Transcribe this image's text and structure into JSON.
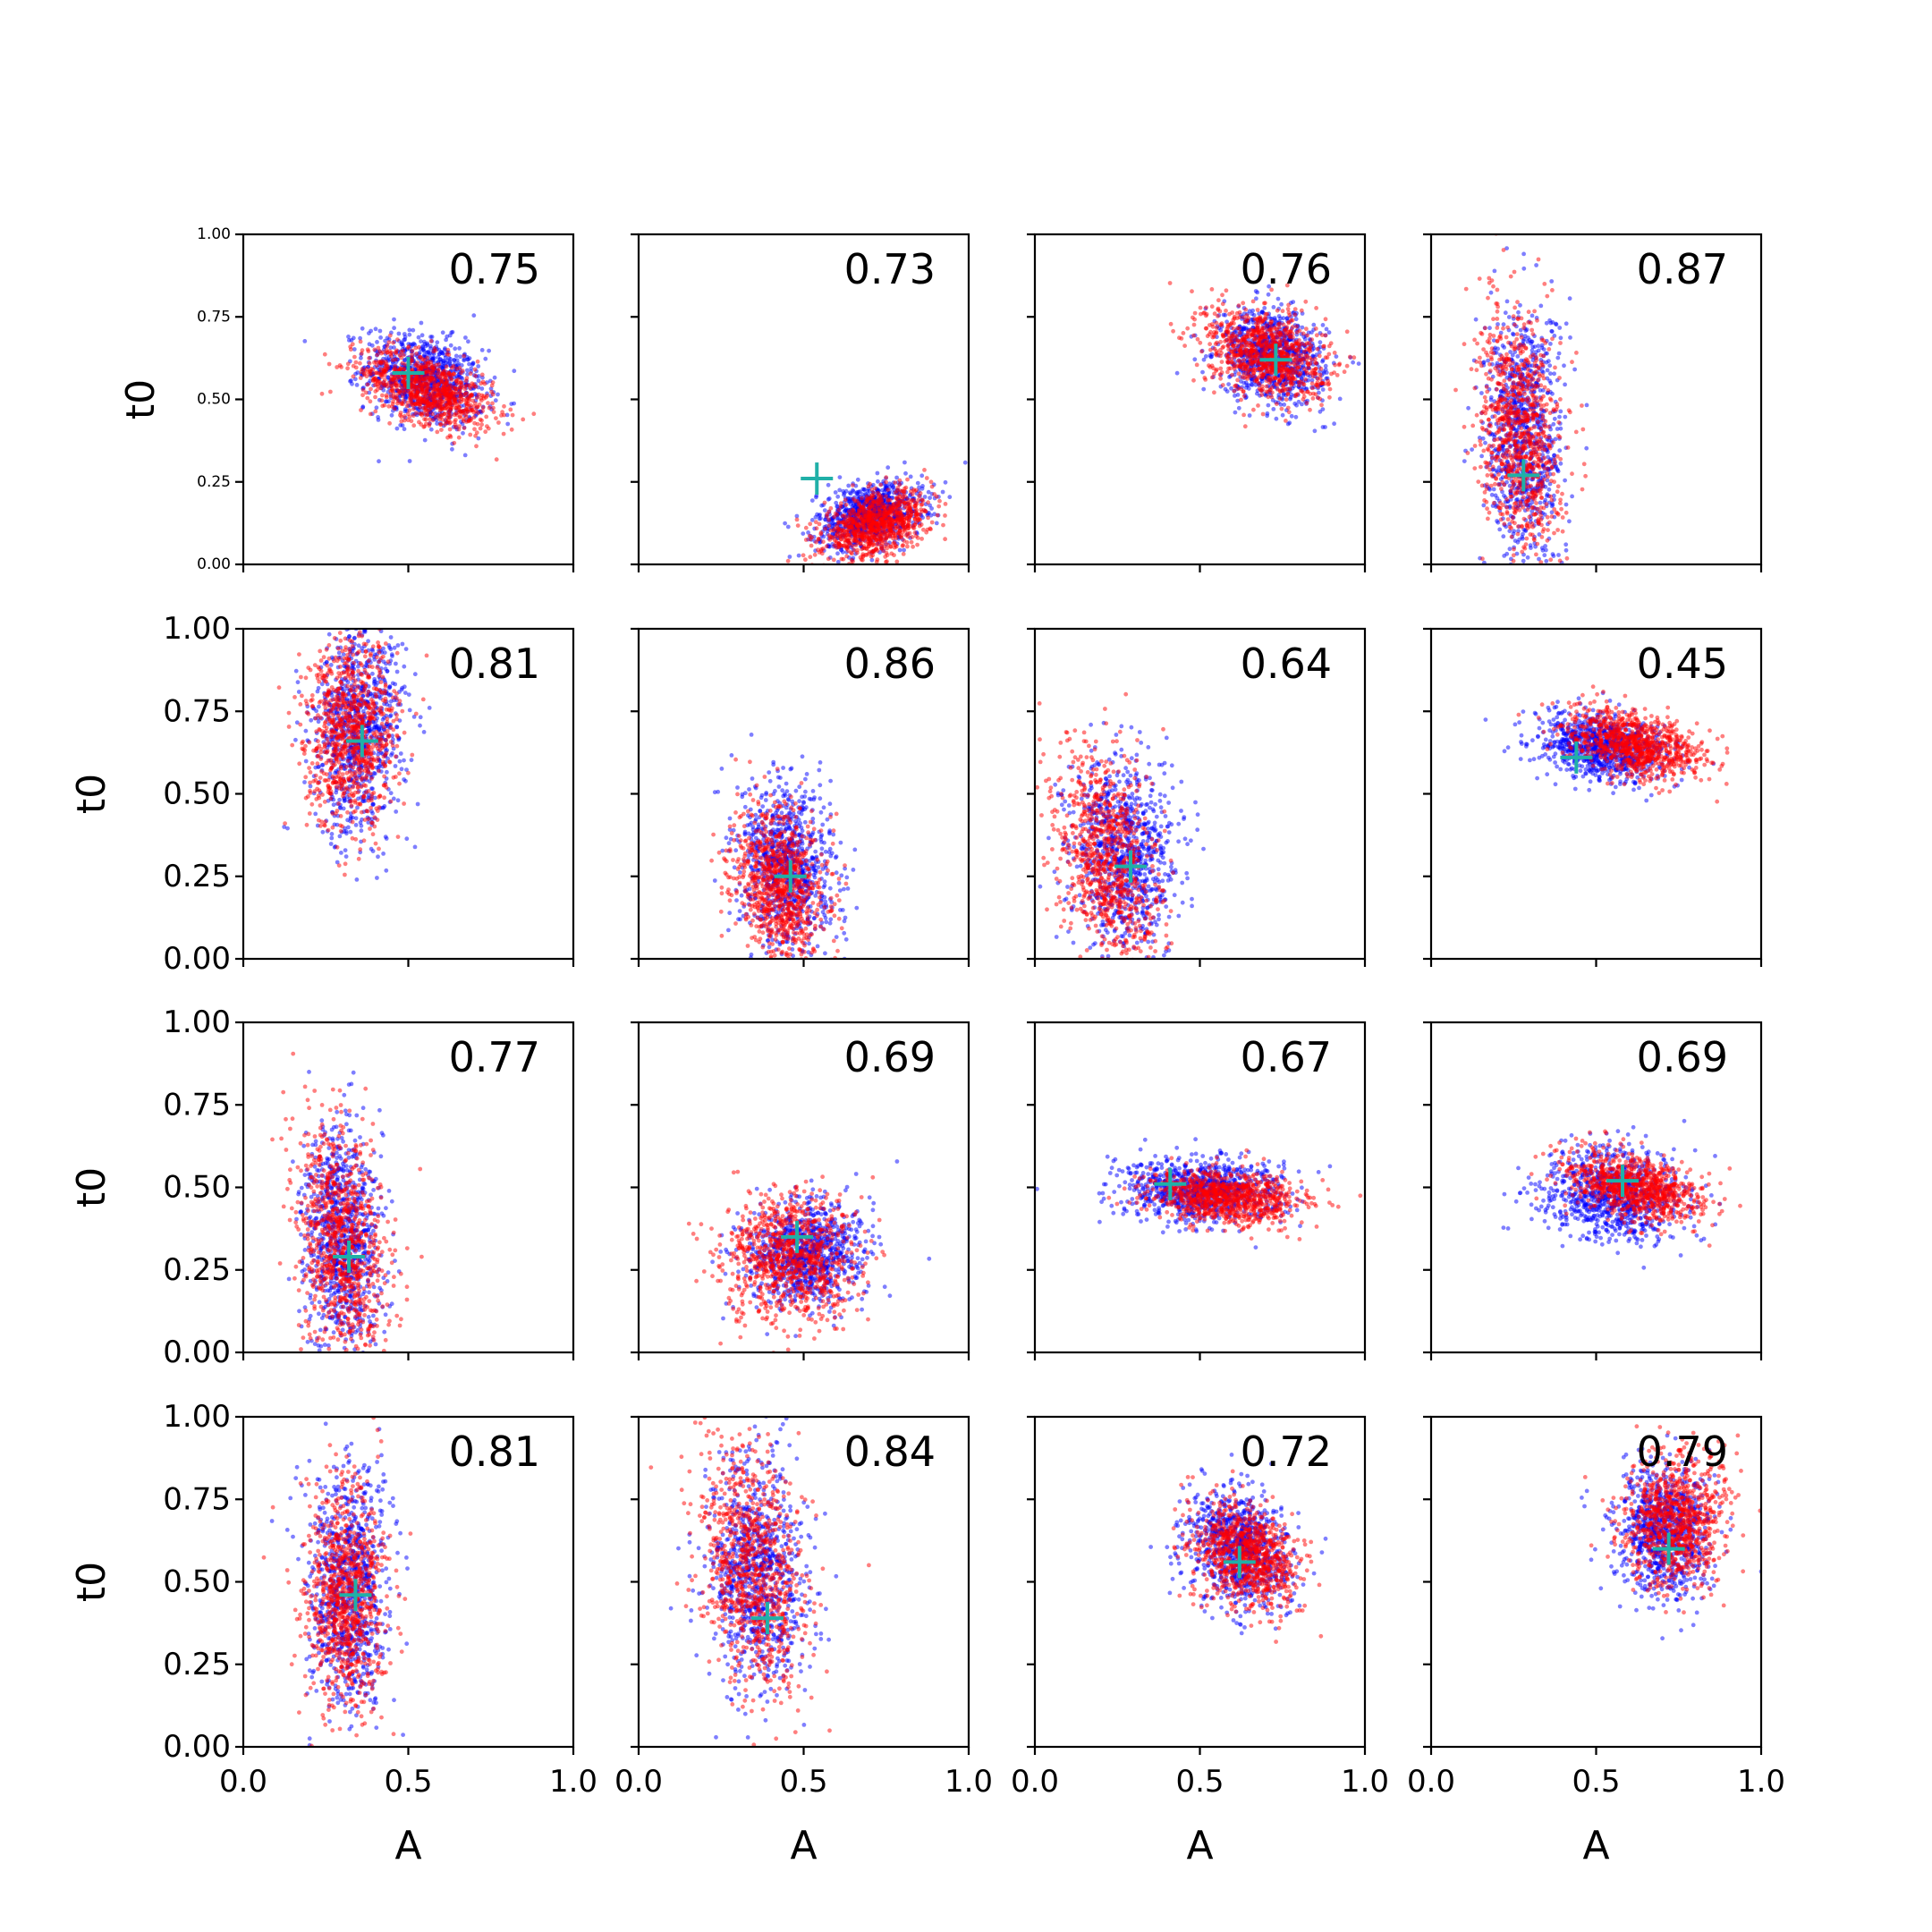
{
  "chart_data": {
    "type": "scatter",
    "layout": "4x4 grid of subplots, shared axes",
    "xlabel": "A",
    "ylabel": "t0",
    "xlim": [
      0.0,
      1.0
    ],
    "ylim": [
      0.0,
      1.0
    ],
    "xticks": [
      "0.0",
      "0.5",
      "1.0"
    ],
    "yticks": [
      "0.00",
      "0.25",
      "0.50",
      "0.75",
      "1.00"
    ],
    "grid": false,
    "colors": {
      "series_blue": "#0000ff",
      "series_red": "#ff0000",
      "marker": "#20b0a8"
    },
    "subplots": [
      {
        "score": "0.75",
        "marker": [
          0.5,
          0.58
        ],
        "blue": {
          "cx": 0.55,
          "cy": 0.56,
          "sx": 0.09,
          "sy": 0.07,
          "rho": -0.3
        },
        "red": {
          "cx": 0.56,
          "cy": 0.53,
          "sx": 0.1,
          "sy": 0.06,
          "rho": -0.5
        }
      },
      {
        "score": "0.73",
        "marker": [
          0.54,
          0.26
        ],
        "blue": {
          "cx": 0.7,
          "cy": 0.15,
          "sx": 0.08,
          "sy": 0.05,
          "rho": 0.3
        },
        "red": {
          "cx": 0.72,
          "cy": 0.12,
          "sx": 0.08,
          "sy": 0.05,
          "rho": 0.4
        }
      },
      {
        "score": "0.76",
        "marker": [
          0.73,
          0.62
        ],
        "blue": {
          "cx": 0.72,
          "cy": 0.63,
          "sx": 0.08,
          "sy": 0.07,
          "rho": -0.2
        },
        "red": {
          "cx": 0.7,
          "cy": 0.64,
          "sx": 0.09,
          "sy": 0.07,
          "rho": -0.3
        }
      },
      {
        "score": "0.87",
        "marker": [
          0.28,
          0.27
        ],
        "blue": {
          "cx": 0.28,
          "cy": 0.38,
          "sx": 0.06,
          "sy": 0.2,
          "rho": 0.0
        },
        "red": {
          "cx": 0.27,
          "cy": 0.4,
          "sx": 0.06,
          "sy": 0.18,
          "rho": -0.2
        }
      },
      {
        "score": "0.81",
        "marker": [
          0.36,
          0.66
        ],
        "blue": {
          "cx": 0.35,
          "cy": 0.7,
          "sx": 0.07,
          "sy": 0.16,
          "rho": 0.1
        },
        "red": {
          "cx": 0.33,
          "cy": 0.68,
          "sx": 0.07,
          "sy": 0.14,
          "rho": 0.0
        }
      },
      {
        "score": "0.86",
        "marker": [
          0.46,
          0.25
        ],
        "blue": {
          "cx": 0.45,
          "cy": 0.28,
          "sx": 0.07,
          "sy": 0.13,
          "rho": -0.1
        },
        "red": {
          "cx": 0.43,
          "cy": 0.22,
          "sx": 0.07,
          "sy": 0.12,
          "rho": -0.2
        }
      },
      {
        "score": "0.64",
        "marker": [
          0.29,
          0.28
        ],
        "blue": {
          "cx": 0.27,
          "cy": 0.32,
          "sx": 0.08,
          "sy": 0.14,
          "rho": -0.1
        },
        "red": {
          "cx": 0.22,
          "cy": 0.28,
          "sx": 0.08,
          "sy": 0.18,
          "rho": -0.3
        }
      },
      {
        "score": "0.45",
        "marker": [
          0.44,
          0.61
        ],
        "blue": {
          "cx": 0.52,
          "cy": 0.64,
          "sx": 0.1,
          "sy": 0.05,
          "rho": -0.2
        },
        "red": {
          "cx": 0.62,
          "cy": 0.65,
          "sx": 0.1,
          "sy": 0.05,
          "rho": -0.4
        }
      },
      {
        "score": "0.77",
        "marker": [
          0.32,
          0.29
        ],
        "blue": {
          "cx": 0.3,
          "cy": 0.35,
          "sx": 0.06,
          "sy": 0.17,
          "rho": -0.1
        },
        "red": {
          "cx": 0.3,
          "cy": 0.33,
          "sx": 0.07,
          "sy": 0.18,
          "rho": -0.3
        }
      },
      {
        "score": "0.69",
        "marker": [
          0.48,
          0.35
        ],
        "blue": {
          "cx": 0.5,
          "cy": 0.3,
          "sx": 0.09,
          "sy": 0.08,
          "rho": 0.1
        },
        "red": {
          "cx": 0.46,
          "cy": 0.28,
          "sx": 0.1,
          "sy": 0.1,
          "rho": 0.0
        }
      },
      {
        "score": "0.67",
        "marker": [
          0.41,
          0.51
        ],
        "blue": {
          "cx": 0.5,
          "cy": 0.49,
          "sx": 0.12,
          "sy": 0.05,
          "rho": -0.1
        },
        "red": {
          "cx": 0.58,
          "cy": 0.47,
          "sx": 0.11,
          "sy": 0.04,
          "rho": -0.2
        }
      },
      {
        "score": "0.69",
        "marker": [
          0.58,
          0.52
        ],
        "blue": {
          "cx": 0.55,
          "cy": 0.48,
          "sx": 0.11,
          "sy": 0.07,
          "rho": -0.1
        },
        "red": {
          "cx": 0.62,
          "cy": 0.5,
          "sx": 0.1,
          "sy": 0.05,
          "rho": -0.4
        }
      },
      {
        "score": "0.81",
        "marker": [
          0.34,
          0.46
        ],
        "blue": {
          "cx": 0.32,
          "cy": 0.48,
          "sx": 0.06,
          "sy": 0.18,
          "rho": 0.0
        },
        "red": {
          "cx": 0.31,
          "cy": 0.45,
          "sx": 0.06,
          "sy": 0.17,
          "rho": 0.0
        }
      },
      {
        "score": "0.84",
        "marker": [
          0.39,
          0.39
        ],
        "blue": {
          "cx": 0.36,
          "cy": 0.52,
          "sx": 0.07,
          "sy": 0.18,
          "rho": -0.1
        },
        "red": {
          "cx": 0.35,
          "cy": 0.52,
          "sx": 0.08,
          "sy": 0.18,
          "rho": -0.3
        }
      },
      {
        "score": "0.72",
        "marker": [
          0.62,
          0.56
        ],
        "blue": {
          "cx": 0.62,
          "cy": 0.6,
          "sx": 0.08,
          "sy": 0.09,
          "rho": -0.2
        },
        "red": {
          "cx": 0.64,
          "cy": 0.58,
          "sx": 0.08,
          "sy": 0.08,
          "rho": -0.3
        }
      },
      {
        "score": "0.79",
        "marker": [
          0.72,
          0.6
        ],
        "blue": {
          "cx": 0.71,
          "cy": 0.66,
          "sx": 0.07,
          "sy": 0.1,
          "rho": 0.0
        },
        "red": {
          "cx": 0.74,
          "cy": 0.68,
          "sx": 0.08,
          "sy": 0.1,
          "rho": 0.0
        }
      }
    ]
  }
}
